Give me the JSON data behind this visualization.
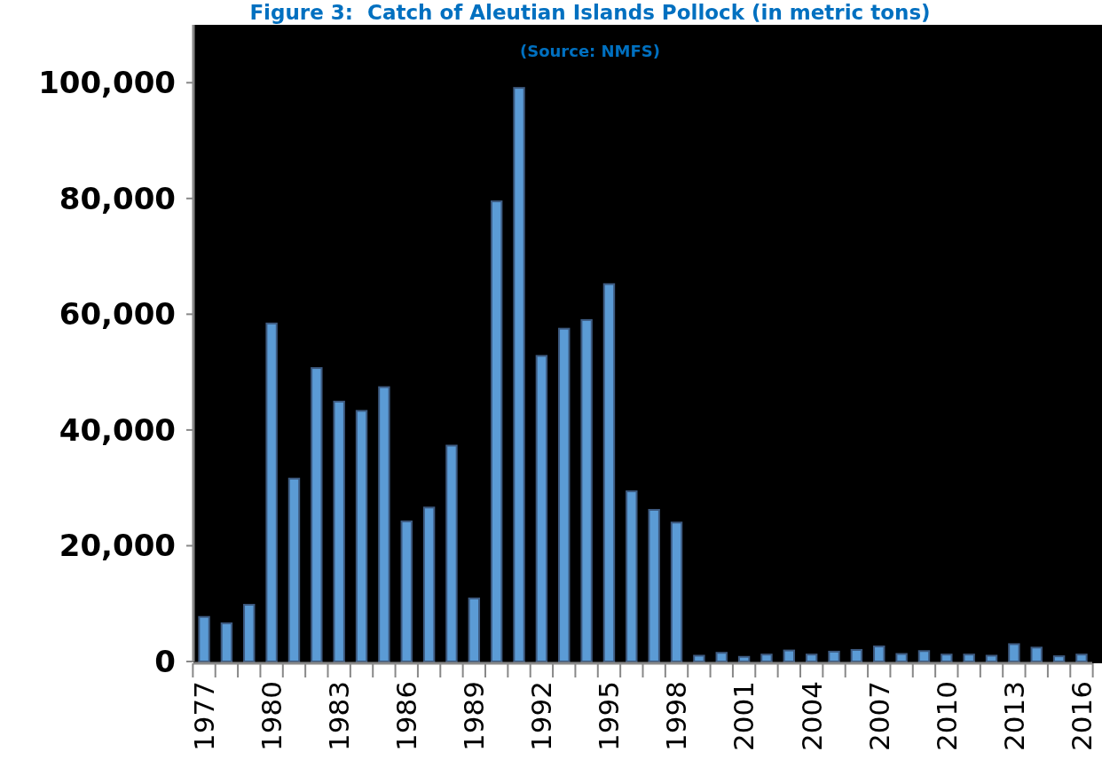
{
  "chart_data": {
    "type": "bar",
    "title": "Figure 3:  Catch of Aleutian Islands Pollock (in metric tons)",
    "subtitle": "(Source: NMFS)",
    "categories": [
      "1977",
      null,
      null,
      "1980",
      null,
      null,
      "1983",
      null,
      null,
      "1986",
      null,
      null,
      "1989",
      null,
      null,
      "1992",
      null,
      null,
      "1995",
      null,
      null,
      "1998",
      null,
      null,
      "2001",
      null,
      null,
      "2004",
      null,
      null,
      "2007",
      null,
      null,
      "2010",
      null,
      null,
      "2013",
      null,
      null,
      "2016"
    ],
    "values": [
      7700,
      6600,
      9800,
      58400,
      31600,
      50700,
      44900,
      43300,
      47400,
      24200,
      26600,
      37300,
      10900,
      79500,
      99100,
      52800,
      57500,
      59000,
      65200,
      29400,
      26200,
      24000,
      1000,
      1500,
      800,
      1200,
      1900,
      1200,
      1700,
      2000,
      2600,
      1300,
      1800,
      1200,
      1200,
      1000,
      3000,
      2400,
      900,
      1200
    ],
    "color": "#5b9bd5",
    "ylim": [
      0,
      110000
    ],
    "yticks": [
      {
        "value": 0,
        "label": "0"
      },
      {
        "value": 20000,
        "label": "20,000"
      },
      {
        "value": 40000,
        "label": "40,000"
      },
      {
        "value": 60000,
        "label": "60,000"
      },
      {
        "value": 80000,
        "label": "80,000"
      },
      {
        "value": 100000,
        "label": "100,000"
      }
    ],
    "grid": false
  }
}
